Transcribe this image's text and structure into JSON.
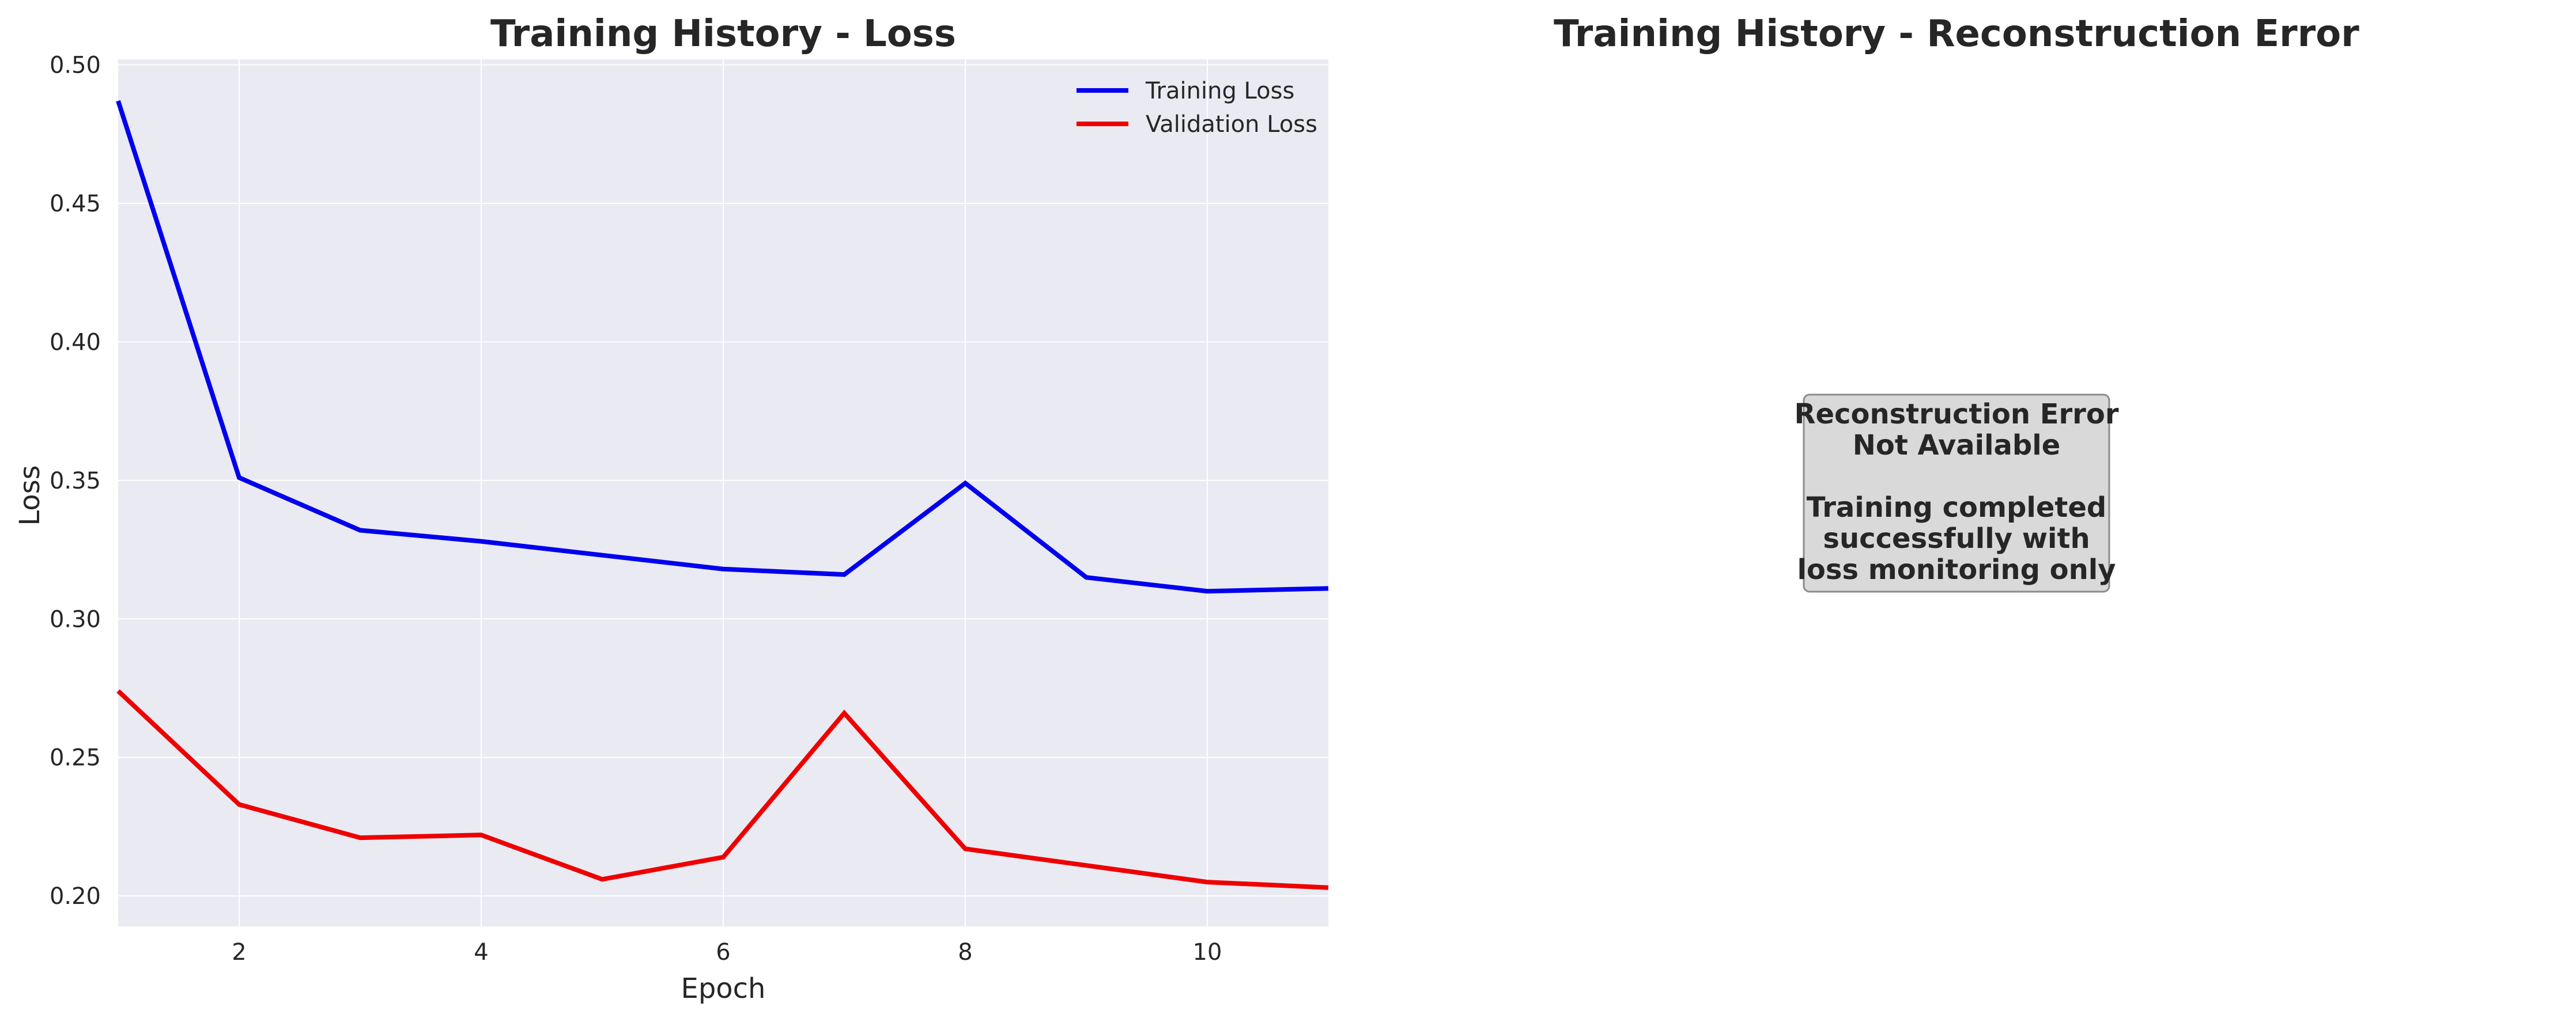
{
  "chart_data": [
    {
      "type": "line",
      "title": "Training History - Loss",
      "xlabel": "Epoch",
      "ylabel": "Loss",
      "xlim": [
        1,
        11
      ],
      "ylim": [
        0.189,
        0.502
      ],
      "x_ticks": [
        2,
        4,
        6,
        8,
        10
      ],
      "y_ticks": [
        "0.20",
        "0.25",
        "0.30",
        "0.35",
        "0.40",
        "0.45",
        "0.50"
      ],
      "grid": true,
      "legend_position": "top-right",
      "x": [
        1,
        2,
        3,
        4,
        5,
        6,
        7,
        8,
        9,
        10,
        11
      ],
      "series": [
        {
          "name": "Training Loss",
          "color": "#0000ee",
          "values": [
            0.487,
            0.351,
            0.332,
            0.328,
            0.323,
            0.318,
            0.316,
            0.349,
            0.315,
            0.31,
            0.311
          ]
        },
        {
          "name": "Validation Loss",
          "color": "#ee0000",
          "values": [
            0.274,
            0.233,
            0.221,
            0.222,
            0.206,
            0.214,
            0.266,
            0.217,
            0.211,
            0.205,
            0.203
          ]
        }
      ]
    },
    {
      "type": "text",
      "title": "Training History - Reconstruction Error",
      "message_lines": [
        "Reconstruction Error",
        "Not Available",
        "",
        "Training completed",
        "successfully with",
        "loss monitoring only"
      ]
    }
  ],
  "colors": {
    "plot_background": "#eaeaf2",
    "grid": "#ffffff",
    "text": "#262626",
    "box_fill": "#d9d9d9",
    "box_edge": "#8c8c8c"
  }
}
